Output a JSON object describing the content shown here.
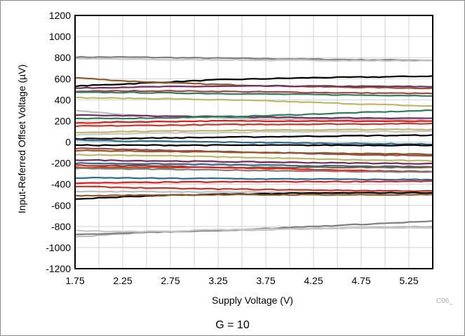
{
  "chart_data": {
    "type": "line",
    "xlabel": "Supply Voltage (V)",
    "ylabel": "Input-Referred Offset Voltage (µV)",
    "xlim": [
      1.75,
      5.5
    ],
    "ylim": [
      -1200,
      1200
    ],
    "x_ticks": [
      "1.75",
      "2.25",
      "2.75",
      "3.25",
      "3.75",
      "4.25",
      "4.75",
      "5.25"
    ],
    "y_ticks": [
      "1200",
      "1000",
      "800",
      "600",
      "400",
      "200",
      "0",
      "-200",
      "-400",
      "-600",
      "-800",
      "-1000",
      "-1200"
    ],
    "grid": true,
    "legend": "none",
    "annotations": {
      "code": "C06_",
      "condition": "G = 10"
    },
    "x": [
      1.75,
      2.25,
      2.75,
      3.25,
      3.75,
      4.25,
      4.75,
      5.5
    ],
    "series": [
      {
        "color": "#7f7f7f",
        "values": [
          805,
          805,
          800,
          795,
          790,
          785,
          780,
          775
        ]
      },
      {
        "color": "#c8c8c8",
        "values": [
          790,
          785,
          780,
          780,
          775,
          775,
          770,
          770
        ]
      },
      {
        "color": "#000000",
        "values": [
          530,
          550,
          570,
          590,
          600,
          610,
          615,
          625
        ]
      },
      {
        "color": "#8b5a2b",
        "values": [
          610,
          580,
          560,
          545,
          535,
          525,
          518,
          510
        ]
      },
      {
        "color": "#7b2c5e",
        "values": [
          510,
          520,
          525,
          528,
          530,
          530,
          528,
          525
        ]
      },
      {
        "color": "#9e4a4a",
        "values": [
          480,
          485,
          485,
          480,
          475,
          470,
          465,
          460
        ]
      },
      {
        "color": "#2e7d5b",
        "values": [
          470,
          470,
          465,
          460,
          455,
          450,
          445,
          440
        ]
      },
      {
        "color": "#bdb76b",
        "values": [
          420,
          415,
          410,
          400,
          390,
          375,
          360,
          340
        ]
      },
      {
        "color": "#bdbdbd",
        "values": [
          300,
          260,
          240,
          230,
          220,
          215,
          210,
          205
        ]
      },
      {
        "color": "#7b2c5e",
        "values": [
          255,
          250,
          245,
          240,
          235,
          230,
          228,
          225
        ]
      },
      {
        "color": "#2e7d5b",
        "values": [
          220,
          225,
          230,
          240,
          250,
          265,
          280,
          300
        ]
      },
      {
        "color": "#e02020",
        "values": [
          180,
          190,
          195,
          200,
          200,
          200,
          198,
          195
        ]
      },
      {
        "color": "#c0392b",
        "values": [
          150,
          155,
          160,
          165,
          168,
          170,
          172,
          175
        ]
      },
      {
        "color": "#bdb76b",
        "values": [
          90,
          100,
          105,
          110,
          112,
          115,
          118,
          120
        ]
      },
      {
        "color": "#c8c8c8",
        "values": [
          70,
          80,
          85,
          90,
          95,
          98,
          100,
          102
        ]
      },
      {
        "color": "#000000",
        "values": [
          30,
          35,
          40,
          45,
          50,
          55,
          60,
          65
        ]
      },
      {
        "color": "#2b6d8a",
        "values": [
          20,
          10,
          5,
          0,
          -5,
          -10,
          -15,
          -20
        ]
      },
      {
        "color": "#000000",
        "values": [
          -30,
          -30,
          -30,
          -30,
          -30,
          -30,
          -30,
          -30
        ]
      },
      {
        "color": "#9e4a4a",
        "values": [
          -60,
          -70,
          -80,
          -90,
          -100,
          -110,
          -120,
          -130
        ]
      },
      {
        "color": "#8b5a2b",
        "values": [
          -80,
          -85,
          -90,
          -95,
          -100,
          -105,
          -110,
          -115
        ]
      },
      {
        "color": "#bdb76b",
        "values": [
          -120,
          -125,
          -130,
          -140,
          -150,
          -160,
          -170,
          -180
        ]
      },
      {
        "color": "#7b2c5e",
        "values": [
          -170,
          -175,
          -180,
          -185,
          -190,
          -195,
          -200,
          -205
        ]
      },
      {
        "color": "#2b6d8a",
        "values": [
          -200,
          -205,
          -210,
          -215,
          -220,
          -225,
          -230,
          -235
        ]
      },
      {
        "color": "#8b5a2b",
        "values": [
          -240,
          -240,
          -240,
          -240,
          -240,
          -240,
          -240,
          -240
        ]
      },
      {
        "color": "#e02020",
        "values": [
          -220,
          -225,
          -230,
          -240,
          -250,
          -260,
          -270,
          -280
        ]
      },
      {
        "color": "#7f7f7f",
        "values": [
          -250,
          -255,
          -260,
          -265,
          -270,
          -275,
          -280,
          -285
        ]
      },
      {
        "color": "#2b6d8a",
        "values": [
          -340,
          -340,
          -345,
          -345,
          -350,
          -350,
          -355,
          -355
        ]
      },
      {
        "color": "#e02020",
        "values": [
          -390,
          -385,
          -380,
          -378,
          -376,
          -375,
          -374,
          -372
        ]
      },
      {
        "color": "#c0392b",
        "values": [
          -420,
          -430,
          -440,
          -445,
          -450,
          -455,
          -460,
          -465
        ]
      },
      {
        "color": "#bdbdbd",
        "values": [
          -470,
          -470,
          -470,
          -475,
          -475,
          -475,
          -480,
          -480
        ]
      },
      {
        "color": "#000000",
        "values": [
          -540,
          -520,
          -505,
          -495,
          -490,
          -485,
          -482,
          -480
        ]
      },
      {
        "color": "#8b5a2b",
        "values": [
          -510,
          -505,
          -500,
          -500,
          -500,
          -500,
          -500,
          -500
        ]
      },
      {
        "color": "#bdbdbd",
        "values": [
          -900,
          -870,
          -850,
          -840,
          -830,
          -820,
          -810,
          -800
        ]
      },
      {
        "color": "#7f7f7f",
        "values": [
          -880,
          -860,
          -850,
          -835,
          -820,
          -800,
          -780,
          -750
        ]
      },
      {
        "color": "#c8c8c8",
        "values": [
          -840,
          -850,
          -845,
          -830,
          -825,
          -820,
          -815,
          -810
        ]
      }
    ]
  }
}
